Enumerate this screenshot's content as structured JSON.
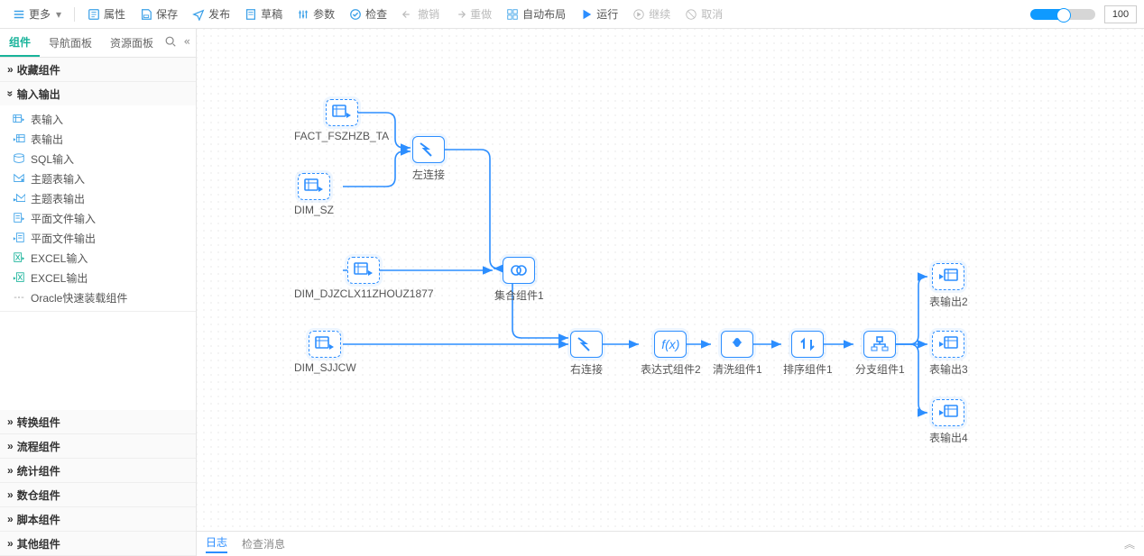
{
  "toolbar": {
    "more": "更多",
    "props": "属性",
    "save": "保存",
    "publish": "发布",
    "draft": "草稿",
    "params": "参数",
    "check": "检查",
    "undo": "撤销",
    "redo": "重做",
    "autolayout": "自动布局",
    "run": "运行",
    "continue": "继续",
    "cancel": "取消",
    "zoom_value": "100"
  },
  "left_tabs": {
    "components": "组件",
    "nav": "导航面板",
    "resources": "资源面板"
  },
  "sections": {
    "favorites": "收藏组件",
    "io": "输入输出",
    "transform": "转换组件",
    "flow": "流程组件",
    "stats": "统计组件",
    "dw": "数仓组件",
    "script": "脚本组件",
    "other": "其他组件"
  },
  "io_items": [
    "表输入",
    "表输出",
    "SQL输入",
    "主题表输入",
    "主题表输出",
    "平面文件输入",
    "平面文件输出",
    "EXCEL输入",
    "EXCEL输出",
    "Oracle快速装载组件"
  ],
  "bottom": {
    "log": "日志",
    "msg": "检查消息"
  },
  "nodes": {
    "fact": "FACT_FSZHZB_TA",
    "dim_sz": "DIM_SZ",
    "left_join": "左连接",
    "dim_djzclx": "DIM_DJZCLX11ZHOUZ1877",
    "agg": "集合组件1",
    "dim_sjjcw": "DIM_SJJCW",
    "right_join": "右连接",
    "expr": "表达式组件2",
    "clean": "清洗组件1",
    "sort": "排序组件1",
    "branch": "分支组件1",
    "out2": "表输出2",
    "out3": "表输出3",
    "out4": "表输出4"
  },
  "colors": {
    "accent": "#2c8eff",
    "edge": "#2c8eff",
    "toolbar_icon": "#3aa0e8",
    "run": "#2c8eff"
  }
}
